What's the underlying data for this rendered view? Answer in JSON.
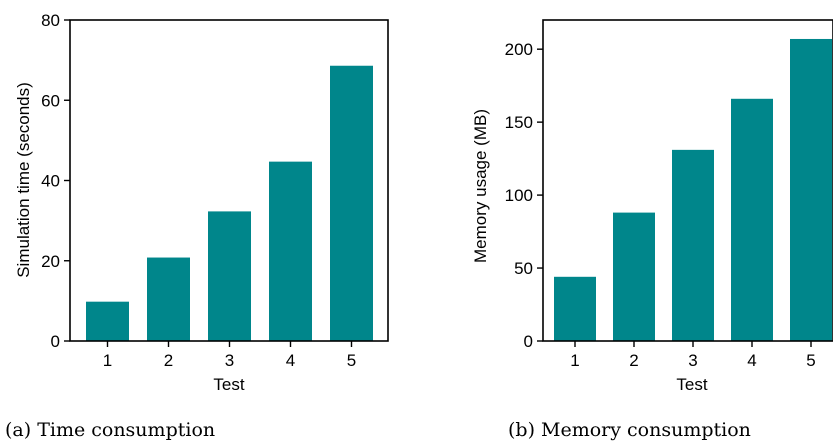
{
  "chart_data": [
    {
      "type": "bar",
      "categories": [
        "1",
        "2",
        "3",
        "4",
        "5"
      ],
      "values": [
        9.8,
        20.8,
        32.3,
        44.7,
        68.6
      ],
      "xlabel": "Test",
      "ylabel": "Simulation time (seconds)",
      "ylim": [
        0,
        80
      ],
      "yticks": [
        0,
        20,
        40,
        60,
        80
      ],
      "grid": false,
      "bar_color": "#00868B",
      "caption": "(a) Time consumption"
    },
    {
      "type": "bar",
      "categories": [
        "1",
        "2",
        "3",
        "4",
        "5"
      ],
      "values": [
        44,
        88,
        131,
        166,
        207
      ],
      "xlabel": "Test",
      "ylabel": "Memory usage (MB)",
      "ylim": [
        0,
        220
      ],
      "yticks": [
        0,
        50,
        100,
        150,
        200
      ],
      "grid": false,
      "bar_color": "#00868B",
      "caption": "(b) Memory consumption"
    }
  ]
}
